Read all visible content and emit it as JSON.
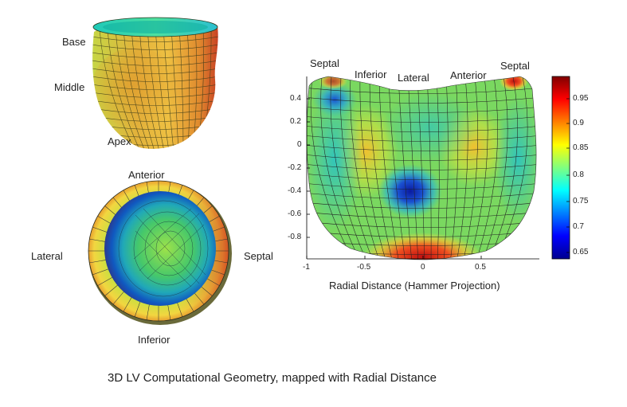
{
  "heart3d": {
    "labels": {
      "base": "Base",
      "middle": "Middle",
      "apex": "Apex"
    }
  },
  "topview": {
    "labels": {
      "anterior": "Anterior",
      "lateral": "Lateral",
      "septal": "Septal",
      "inferior": "Inferior"
    }
  },
  "hammer": {
    "top_labels": [
      "Septal",
      "Inferior",
      "Lateral",
      "Anterior",
      "Septal"
    ],
    "xlabel": "Radial Distance (Hammer Projection)",
    "xticks": [
      "-1",
      "-0.5",
      "0",
      "0.5"
    ],
    "yticks": [
      "0.4",
      "0.2",
      "0",
      "-0.2",
      "-0.4",
      "-0.6",
      "-0.8"
    ],
    "colorbar": {
      "ticks": [
        "0.95",
        "0.9",
        "0.85",
        "0.8",
        "0.75",
        "0.7",
        "0.65"
      ],
      "range": [
        0.63,
        1.0
      ],
      "colormap": "jet"
    }
  },
  "caption": "3D LV Computational Geometry, mapped with Radial Distance"
}
